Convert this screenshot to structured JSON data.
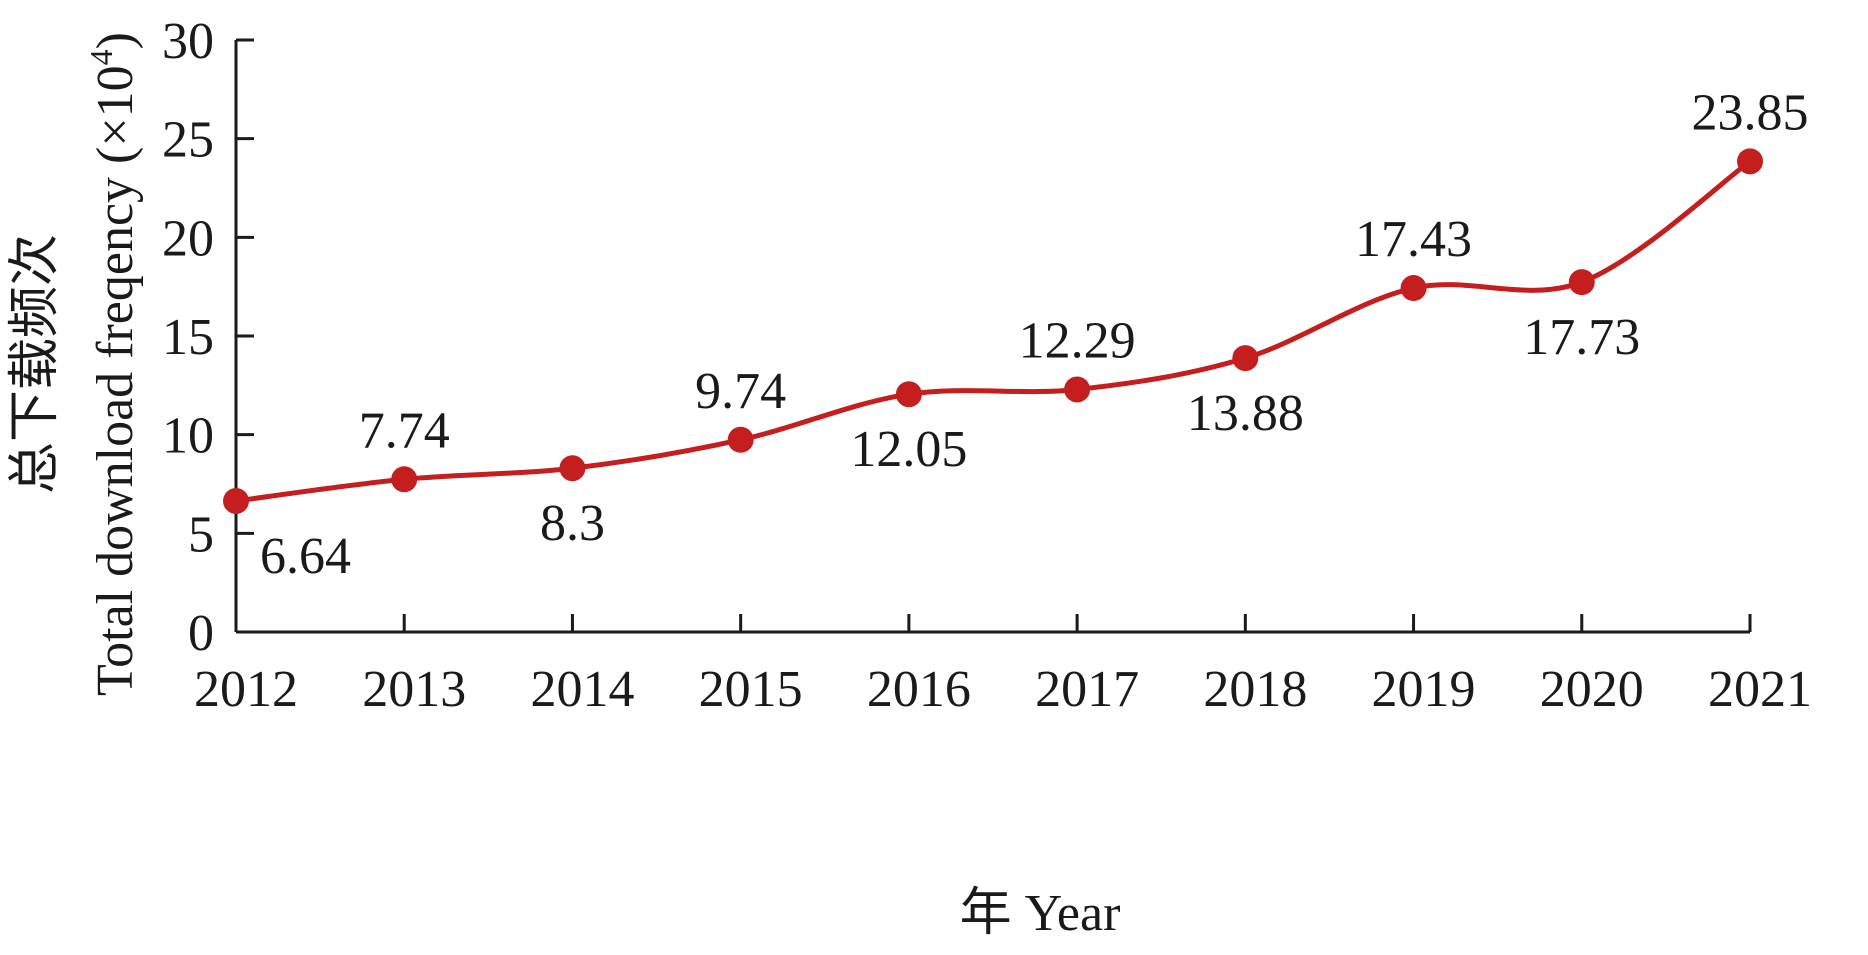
{
  "chart_data": {
    "type": "line",
    "xlabel": "年 Year",
    "ylabel_cn": "总下载频次",
    "ylabel_en_main": "Total download freqency (×10",
    "ylabel_en_sup": "4",
    "ylabel_en_close": ")",
    "ylim": [
      0,
      30
    ],
    "yticks": [
      0,
      5,
      10,
      15,
      20,
      25,
      30
    ],
    "categories": [
      "2012",
      "2013",
      "2014",
      "2015",
      "2016",
      "2017",
      "2018",
      "2019",
      "2020",
      "2021"
    ],
    "series": [
      {
        "values": [
          6.64,
          7.74,
          8.3,
          9.74,
          12.05,
          12.29,
          13.88,
          17.43,
          17.73,
          23.85
        ],
        "labels": [
          "6.64",
          "7.74",
          "8.3",
          "9.74",
          "12.05",
          "12.29",
          "13.88",
          "17.43",
          "17.73",
          "23.85"
        ],
        "label_position": [
          "below-right",
          "above",
          "below",
          "above",
          "below",
          "above",
          "below",
          "above",
          "below",
          "above"
        ]
      }
    ],
    "grid": false,
    "line_color": "#c41e1e",
    "axis_color": "#1a1a1a"
  }
}
